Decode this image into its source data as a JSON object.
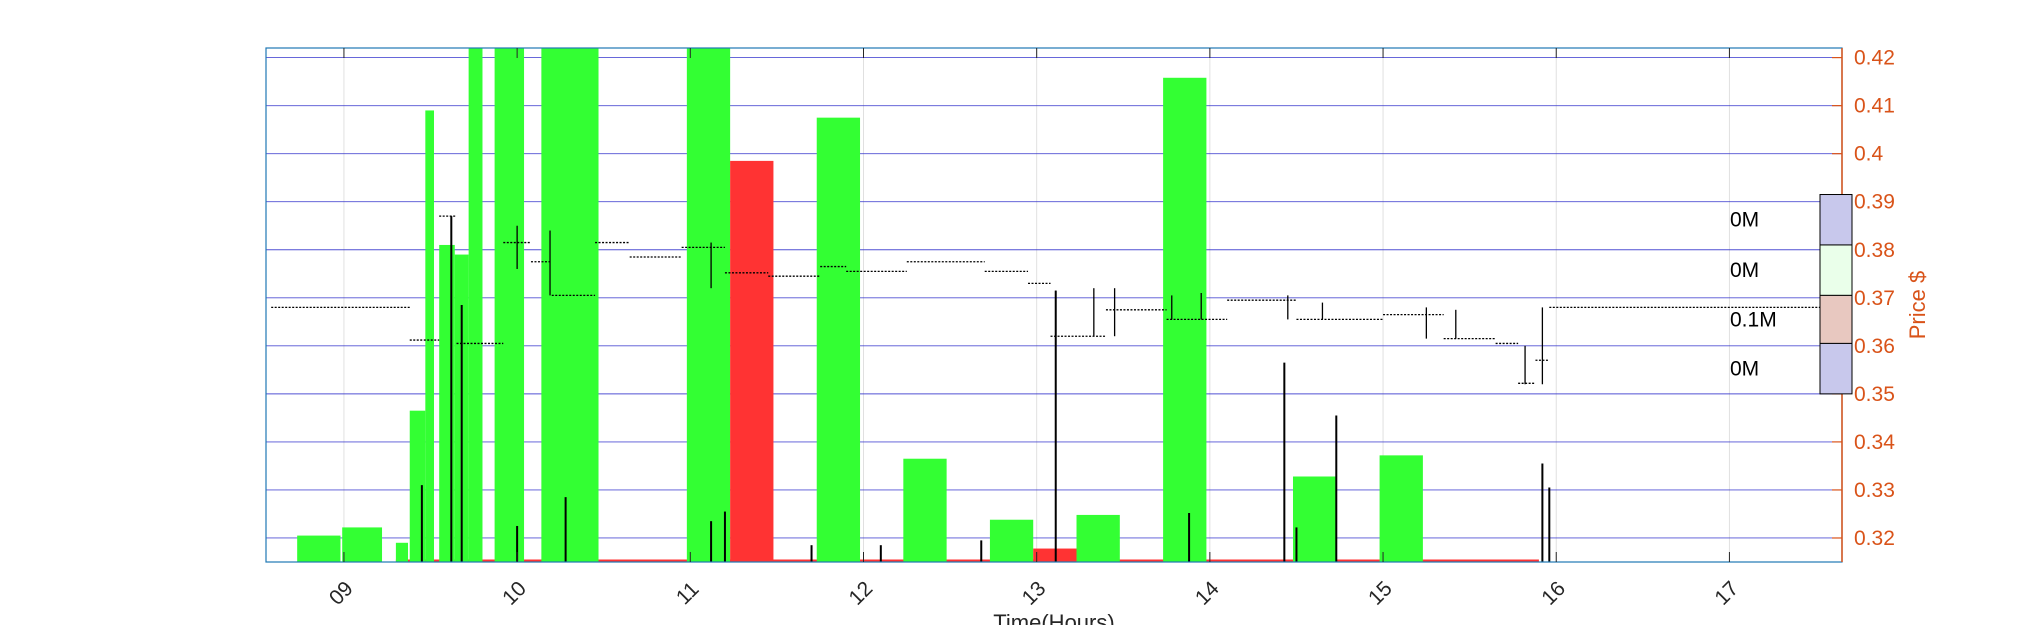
{
  "chart_data": {
    "type": "bar",
    "xlabel": "Time(Hours)",
    "ylabel": "Price $",
    "xlim": [
      8.55,
      17.65
    ],
    "ylim": [
      0.315,
      0.422
    ],
    "x_ticks": [
      9,
      10,
      11,
      12,
      13,
      14,
      15,
      16,
      17
    ],
    "x_tick_labels": [
      "09",
      "10",
      "11",
      "12",
      "13",
      "14",
      "15",
      "16",
      "17"
    ],
    "y_ticks": [
      0.32,
      0.33,
      0.34,
      0.35,
      0.36,
      0.37,
      0.38,
      0.39,
      0.4,
      0.41,
      0.42
    ],
    "grid": true,
    "colors": {
      "buy_volume": "#33ff33",
      "sell_volume": "#ff3333",
      "price_line": "#000000",
      "axis_right": "#d95319",
      "grid_blue": "#3333cc",
      "frame": "#1f77b4"
    },
    "volume_bars_buy": [
      {
        "x0": 8.73,
        "x1": 8.98,
        "top": 0.3205
      },
      {
        "x0": 8.99,
        "x1": 9.22,
        "top": 0.3222
      },
      {
        "x0": 9.3,
        "x1": 9.37,
        "top": 0.319
      },
      {
        "x0": 9.38,
        "x1": 9.47,
        "top": 0.3465
      },
      {
        "x0": 9.47,
        "x1": 9.52,
        "top": 0.409
      },
      {
        "x0": 9.55,
        "x1": 9.64,
        "top": 0.381
      },
      {
        "x0": 9.64,
        "x1": 9.72,
        "top": 0.379
      },
      {
        "x0": 9.72,
        "x1": 9.8,
        "top": 0.422
      },
      {
        "x0": 9.87,
        "x1": 10.04,
        "top": 0.422
      },
      {
        "x0": 10.14,
        "x1": 10.47,
        "top": 0.422
      },
      {
        "x0": 10.98,
        "x1": 11.23,
        "top": 0.422
      },
      {
        "x0": 11.73,
        "x1": 11.98,
        "top": 0.4075
      },
      {
        "x0": 12.23,
        "x1": 12.48,
        "top": 0.3365
      },
      {
        "x0": 12.73,
        "x1": 12.98,
        "top": 0.3238
      },
      {
        "x0": 13.23,
        "x1": 13.48,
        "top": 0.3248
      },
      {
        "x0": 13.73,
        "x1": 13.98,
        "top": 0.4158
      },
      {
        "x0": 14.48,
        "x1": 14.73,
        "top": 0.3328
      },
      {
        "x0": 14.98,
        "x1": 15.23,
        "top": 0.3372
      }
    ],
    "volume_bars_sell": [
      {
        "x0": 11.23,
        "x1": 11.48,
        "top": 0.3985
      },
      {
        "x0": 12.98,
        "x1": 13.23,
        "top": 0.3178
      }
    ],
    "price_segments": [
      {
        "x0": 8.58,
        "x1": 9.38,
        "y": 0.368
      },
      {
        "x0": 9.38,
        "x1": 9.55,
        "y": 0.3612
      },
      {
        "x0": 9.55,
        "x1": 9.65,
        "y": 0.387
      },
      {
        "x0": 9.65,
        "x1": 9.92,
        "y": 0.3605
      },
      {
        "x0": 9.92,
        "x1": 10.08,
        "y": 0.3815
      },
      {
        "x0": 10.08,
        "x1": 10.2,
        "y": 0.3775
      },
      {
        "x0": 10.2,
        "x1": 10.45,
        "y": 0.3705
      },
      {
        "x0": 10.45,
        "x1": 10.65,
        "y": 0.3815
      },
      {
        "x0": 10.65,
        "x1": 10.95,
        "y": 0.3785
      },
      {
        "x0": 10.95,
        "x1": 11.2,
        "y": 0.3805
      },
      {
        "x0": 11.2,
        "x1": 11.45,
        "y": 0.3752
      },
      {
        "x0": 11.45,
        "x1": 11.75,
        "y": 0.3745
      },
      {
        "x0": 11.75,
        "x1": 11.9,
        "y": 0.3765
      },
      {
        "x0": 11.9,
        "x1": 12.25,
        "y": 0.3755
      },
      {
        "x0": 12.25,
        "x1": 12.7,
        "y": 0.3775
      },
      {
        "x0": 12.7,
        "x1": 12.95,
        "y": 0.3755
      },
      {
        "x0": 12.95,
        "x1": 13.08,
        "y": 0.373
      },
      {
        "x0": 13.08,
        "x1": 13.4,
        "y": 0.362
      },
      {
        "x0": 13.4,
        "x1": 13.75,
        "y": 0.3675
      },
      {
        "x0": 13.75,
        "x1": 14.1,
        "y": 0.3655
      },
      {
        "x0": 14.1,
        "x1": 14.5,
        "y": 0.3695
      },
      {
        "x0": 14.5,
        "x1": 15.0,
        "y": 0.3655
      },
      {
        "x0": 15.0,
        "x1": 15.35,
        "y": 0.3665
      },
      {
        "x0": 15.35,
        "x1": 15.65,
        "y": 0.3615
      },
      {
        "x0": 15.65,
        "x1": 15.78,
        "y": 0.3605
      },
      {
        "x0": 15.78,
        "x1": 15.88,
        "y": 0.3522
      },
      {
        "x0": 15.88,
        "x1": 15.96,
        "y": 0.357
      },
      {
        "x0": 15.96,
        "x1": 17.52,
        "y": 0.368
      }
    ],
    "price_spikes": [
      {
        "x": 9.62,
        "y0": 0.36,
        "y1": 0.385
      },
      {
        "x": 10.0,
        "y0": 0.376,
        "y1": 0.385
      },
      {
        "x": 10.19,
        "y0": 0.3705,
        "y1": 0.384
      },
      {
        "x": 11.12,
        "y0": 0.372,
        "y1": 0.3815
      },
      {
        "x": 13.11,
        "y0": 0.362,
        "y1": 0.3715
      },
      {
        "x": 13.33,
        "y0": 0.362,
        "y1": 0.372
      },
      {
        "x": 13.45,
        "y0": 0.362,
        "y1": 0.372
      },
      {
        "x": 13.78,
        "y0": 0.3655,
        "y1": 0.3705
      },
      {
        "x": 13.95,
        "y0": 0.3655,
        "y1": 0.371
      },
      {
        "x": 14.45,
        "y0": 0.3655,
        "y1": 0.3705
      },
      {
        "x": 14.65,
        "y0": 0.3655,
        "y1": 0.369
      },
      {
        "x": 15.25,
        "y0": 0.3615,
        "y1": 0.368
      },
      {
        "x": 15.42,
        "y0": 0.3615,
        "y1": 0.3675
      },
      {
        "x": 15.82,
        "y0": 0.352,
        "y1": 0.36
      },
      {
        "x": 15.92,
        "y0": 0.352,
        "y1": 0.368
      }
    ],
    "trade_ticks": [
      {
        "x": 9.45,
        "top": 0.331
      },
      {
        "x": 9.62,
        "top": 0.387
      },
      {
        "x": 9.68,
        "top": 0.3685
      },
      {
        "x": 10.0,
        "top": 0.3225
      },
      {
        "x": 10.28,
        "top": 0.3285
      },
      {
        "x": 11.12,
        "top": 0.3235
      },
      {
        "x": 11.2,
        "top": 0.3255
      },
      {
        "x": 11.7,
        "top": 0.3185
      },
      {
        "x": 12.1,
        "top": 0.3185
      },
      {
        "x": 12.68,
        "top": 0.3195
      },
      {
        "x": 13.11,
        "top": 0.3715
      },
      {
        "x": 13.88,
        "top": 0.3252
      },
      {
        "x": 14.43,
        "top": 0.3565
      },
      {
        "x": 14.5,
        "top": 0.3222
      },
      {
        "x": 14.73,
        "top": 0.3455
      },
      {
        "x": 15.92,
        "top": 0.3355
      },
      {
        "x": 15.96,
        "top": 0.3305
      }
    ],
    "price_volume_profile": [
      {
        "y0": 0.381,
        "y1": 0.3915,
        "label": "0M",
        "color": "#c8c8ec"
      },
      {
        "y0": 0.3705,
        "y1": 0.381,
        "label": "0M",
        "color": "#eaffea"
      },
      {
        "y0": 0.3605,
        "y1": 0.3705,
        "label": "0.1M",
        "color": "#e8c8c0"
      },
      {
        "y0": 0.35,
        "y1": 0.3605,
        "label": "0M",
        "color": "#c8c8ec"
      }
    ]
  }
}
